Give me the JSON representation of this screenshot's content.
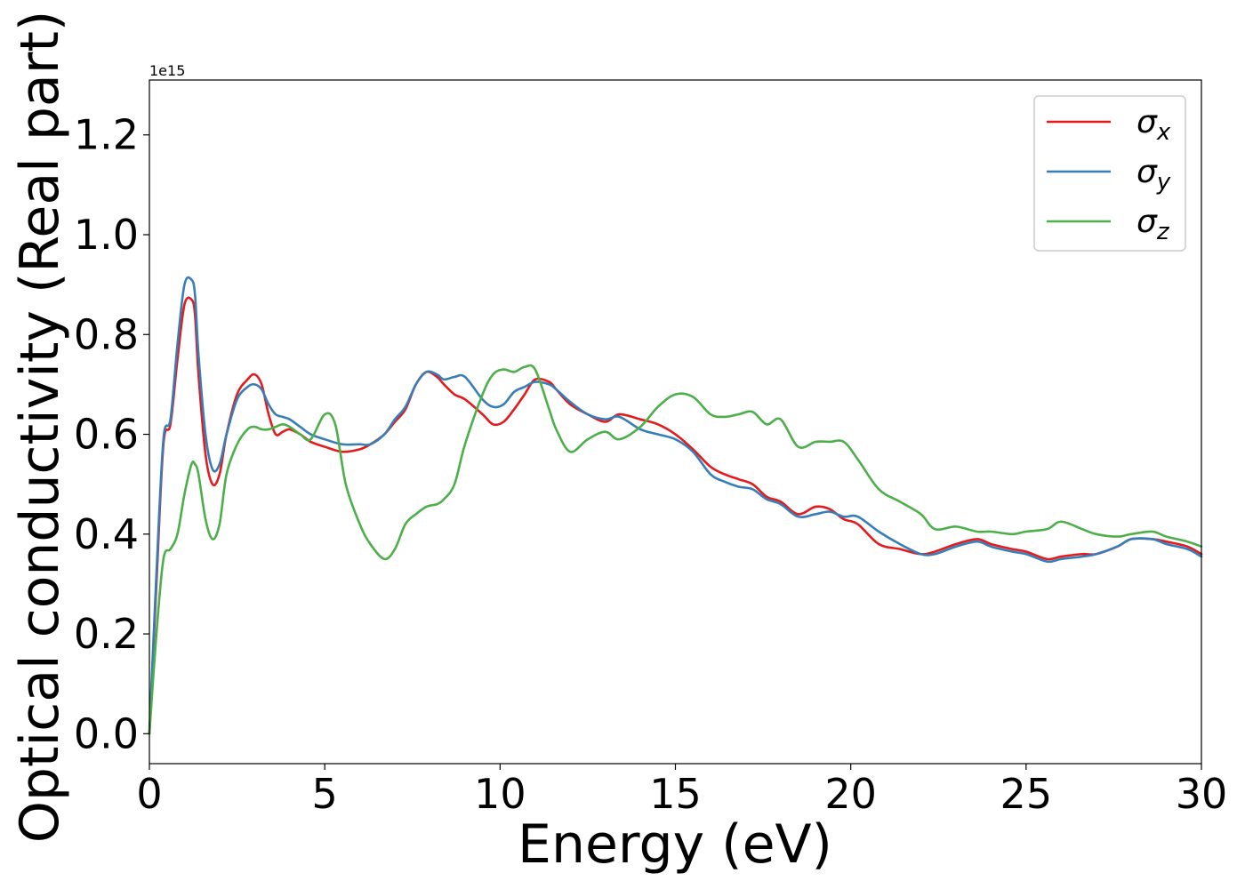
{
  "chart_data": {
    "type": "line",
    "title": "",
    "xlabel": "Energy (eV)",
    "ylabel": "Optical conductivity (Real part)",
    "y_offset_text": "1e15",
    "xlim": [
      0,
      30
    ],
    "ylim": [
      -0.06,
      1.31
    ],
    "y_scale_factor": "1e15",
    "xticks": [
      "0",
      "5",
      "10",
      "15",
      "20",
      "25",
      "30"
    ],
    "yticks": [
      "0.0",
      "0.2",
      "0.4",
      "0.6",
      "0.8",
      "1.0",
      "1.2"
    ],
    "grid": false,
    "legend_placement": "top-right",
    "series": [
      {
        "name": "σ",
        "subscript": "x",
        "color": "#e41a1c",
        "x": [
          0,
          0.2,
          0.4,
          0.6,
          0.8,
          1.0,
          1.2,
          1.3,
          1.4,
          1.6,
          1.8,
          2.0,
          2.2,
          2.5,
          2.8,
          3.0,
          3.2,
          3.4,
          3.6,
          3.8,
          4.0,
          4.3,
          4.6,
          5.0,
          5.5,
          6.0,
          6.3,
          6.7,
          7.0,
          7.3,
          7.6,
          7.9,
          8.2,
          8.4,
          8.7,
          9.0,
          9.5,
          9.8,
          10.1,
          10.4,
          10.7,
          11.0,
          11.4,
          11.6,
          12.0,
          12.5,
          13.0,
          13.4,
          14.0,
          14.5,
          15.0,
          15.5,
          16.0,
          16.4,
          16.8,
          17.2,
          17.6,
          18.0,
          18.5,
          19.0,
          19.4,
          19.8,
          20.2,
          20.8,
          21.4,
          22.0,
          22.4,
          23.0,
          23.6,
          24.0,
          24.6,
          25.0,
          25.6,
          26.0,
          26.6,
          27.0,
          27.6,
          28.0,
          28.6,
          29.0,
          29.6,
          30.0
        ],
        "y": [
          0.0,
          0.3,
          0.58,
          0.62,
          0.75,
          0.86,
          0.87,
          0.84,
          0.72,
          0.56,
          0.5,
          0.52,
          0.6,
          0.68,
          0.71,
          0.72,
          0.7,
          0.64,
          0.6,
          0.605,
          0.61,
          0.6,
          0.585,
          0.575,
          0.565,
          0.57,
          0.58,
          0.6,
          0.625,
          0.65,
          0.7,
          0.725,
          0.715,
          0.7,
          0.68,
          0.67,
          0.64,
          0.62,
          0.625,
          0.65,
          0.68,
          0.71,
          0.705,
          0.69,
          0.66,
          0.64,
          0.625,
          0.64,
          0.63,
          0.62,
          0.6,
          0.57,
          0.535,
          0.52,
          0.51,
          0.5,
          0.475,
          0.465,
          0.44,
          0.455,
          0.45,
          0.43,
          0.42,
          0.38,
          0.37,
          0.36,
          0.365,
          0.38,
          0.39,
          0.38,
          0.37,
          0.365,
          0.35,
          0.355,
          0.36,
          0.36,
          0.375,
          0.39,
          0.39,
          0.385,
          0.375,
          0.36
        ]
      },
      {
        "name": "σ",
        "subscript": "y",
        "color": "#377eb8",
        "x": [
          0,
          0.2,
          0.4,
          0.6,
          0.8,
          1.0,
          1.2,
          1.3,
          1.4,
          1.6,
          1.8,
          2.0,
          2.2,
          2.5,
          2.8,
          3.0,
          3.2,
          3.4,
          3.6,
          3.8,
          4.0,
          4.3,
          4.6,
          5.0,
          5.5,
          6.0,
          6.3,
          6.7,
          7.0,
          7.3,
          7.6,
          7.9,
          8.2,
          8.4,
          8.7,
          9.0,
          9.5,
          9.8,
          10.1,
          10.4,
          10.7,
          11.0,
          11.4,
          11.6,
          12.0,
          12.5,
          13.0,
          13.4,
          14.0,
          14.5,
          15.0,
          15.5,
          16.0,
          16.4,
          16.8,
          17.2,
          17.6,
          18.0,
          18.5,
          19.0,
          19.4,
          19.8,
          20.2,
          20.8,
          21.4,
          22.0,
          22.4,
          23.0,
          23.6,
          24.0,
          24.6,
          25.0,
          25.6,
          26.0,
          26.6,
          27.0,
          27.6,
          28.0,
          28.6,
          29.0,
          29.6,
          30.0
        ],
        "y": [
          0.0,
          0.32,
          0.59,
          0.63,
          0.78,
          0.9,
          0.91,
          0.88,
          0.76,
          0.6,
          0.53,
          0.54,
          0.6,
          0.67,
          0.695,
          0.7,
          0.69,
          0.66,
          0.64,
          0.635,
          0.63,
          0.615,
          0.6,
          0.59,
          0.58,
          0.58,
          0.58,
          0.6,
          0.63,
          0.655,
          0.7,
          0.725,
          0.72,
          0.71,
          0.715,
          0.715,
          0.67,
          0.655,
          0.66,
          0.685,
          0.695,
          0.705,
          0.7,
          0.69,
          0.665,
          0.64,
          0.63,
          0.635,
          0.61,
          0.6,
          0.59,
          0.565,
          0.52,
          0.505,
          0.495,
          0.49,
          0.47,
          0.46,
          0.435,
          0.44,
          0.445,
          0.435,
          0.435,
          0.405,
          0.38,
          0.36,
          0.36,
          0.375,
          0.385,
          0.375,
          0.365,
          0.36,
          0.345,
          0.35,
          0.355,
          0.36,
          0.375,
          0.39,
          0.39,
          0.38,
          0.37,
          0.355
        ]
      },
      {
        "name": "σ",
        "subscript": "z",
        "color": "#4daf4a",
        "x": [
          0,
          0.2,
          0.4,
          0.6,
          0.8,
          1.0,
          1.2,
          1.3,
          1.4,
          1.6,
          1.8,
          2.0,
          2.2,
          2.5,
          2.8,
          3.0,
          3.2,
          3.4,
          3.6,
          3.8,
          4.0,
          4.3,
          4.6,
          5.0,
          5.3,
          5.6,
          6.0,
          6.3,
          6.7,
          7.0,
          7.3,
          7.6,
          7.9,
          8.2,
          8.4,
          8.7,
          9.0,
          9.5,
          9.8,
          10.1,
          10.4,
          10.7,
          11.0,
          11.4,
          11.6,
          12.0,
          12.5,
          13.0,
          13.4,
          14.0,
          14.5,
          15.0,
          15.5,
          16.0,
          16.4,
          16.8,
          17.2,
          17.6,
          18.0,
          18.5,
          19.0,
          19.4,
          19.8,
          20.2,
          20.8,
          21.4,
          22.0,
          22.4,
          23.0,
          23.6,
          24.0,
          24.6,
          25.0,
          25.6,
          26.0,
          26.6,
          27.0,
          27.6,
          28.0,
          28.6,
          29.0,
          29.6,
          30.0
        ],
        "y": [
          0.0,
          0.2,
          0.35,
          0.37,
          0.4,
          0.48,
          0.54,
          0.54,
          0.52,
          0.43,
          0.39,
          0.42,
          0.52,
          0.58,
          0.61,
          0.615,
          0.61,
          0.61,
          0.615,
          0.62,
          0.615,
          0.6,
          0.59,
          0.64,
          0.62,
          0.5,
          0.42,
          0.38,
          0.35,
          0.37,
          0.42,
          0.44,
          0.455,
          0.46,
          0.47,
          0.5,
          0.58,
          0.68,
          0.72,
          0.73,
          0.725,
          0.735,
          0.73,
          0.65,
          0.61,
          0.565,
          0.59,
          0.605,
          0.59,
          0.615,
          0.655,
          0.68,
          0.675,
          0.64,
          0.635,
          0.64,
          0.645,
          0.62,
          0.63,
          0.575,
          0.585,
          0.585,
          0.585,
          0.55,
          0.49,
          0.465,
          0.44,
          0.41,
          0.415,
          0.405,
          0.405,
          0.4,
          0.405,
          0.41,
          0.425,
          0.41,
          0.4,
          0.395,
          0.4,
          0.405,
          0.395,
          0.385,
          0.375
        ]
      }
    ]
  }
}
